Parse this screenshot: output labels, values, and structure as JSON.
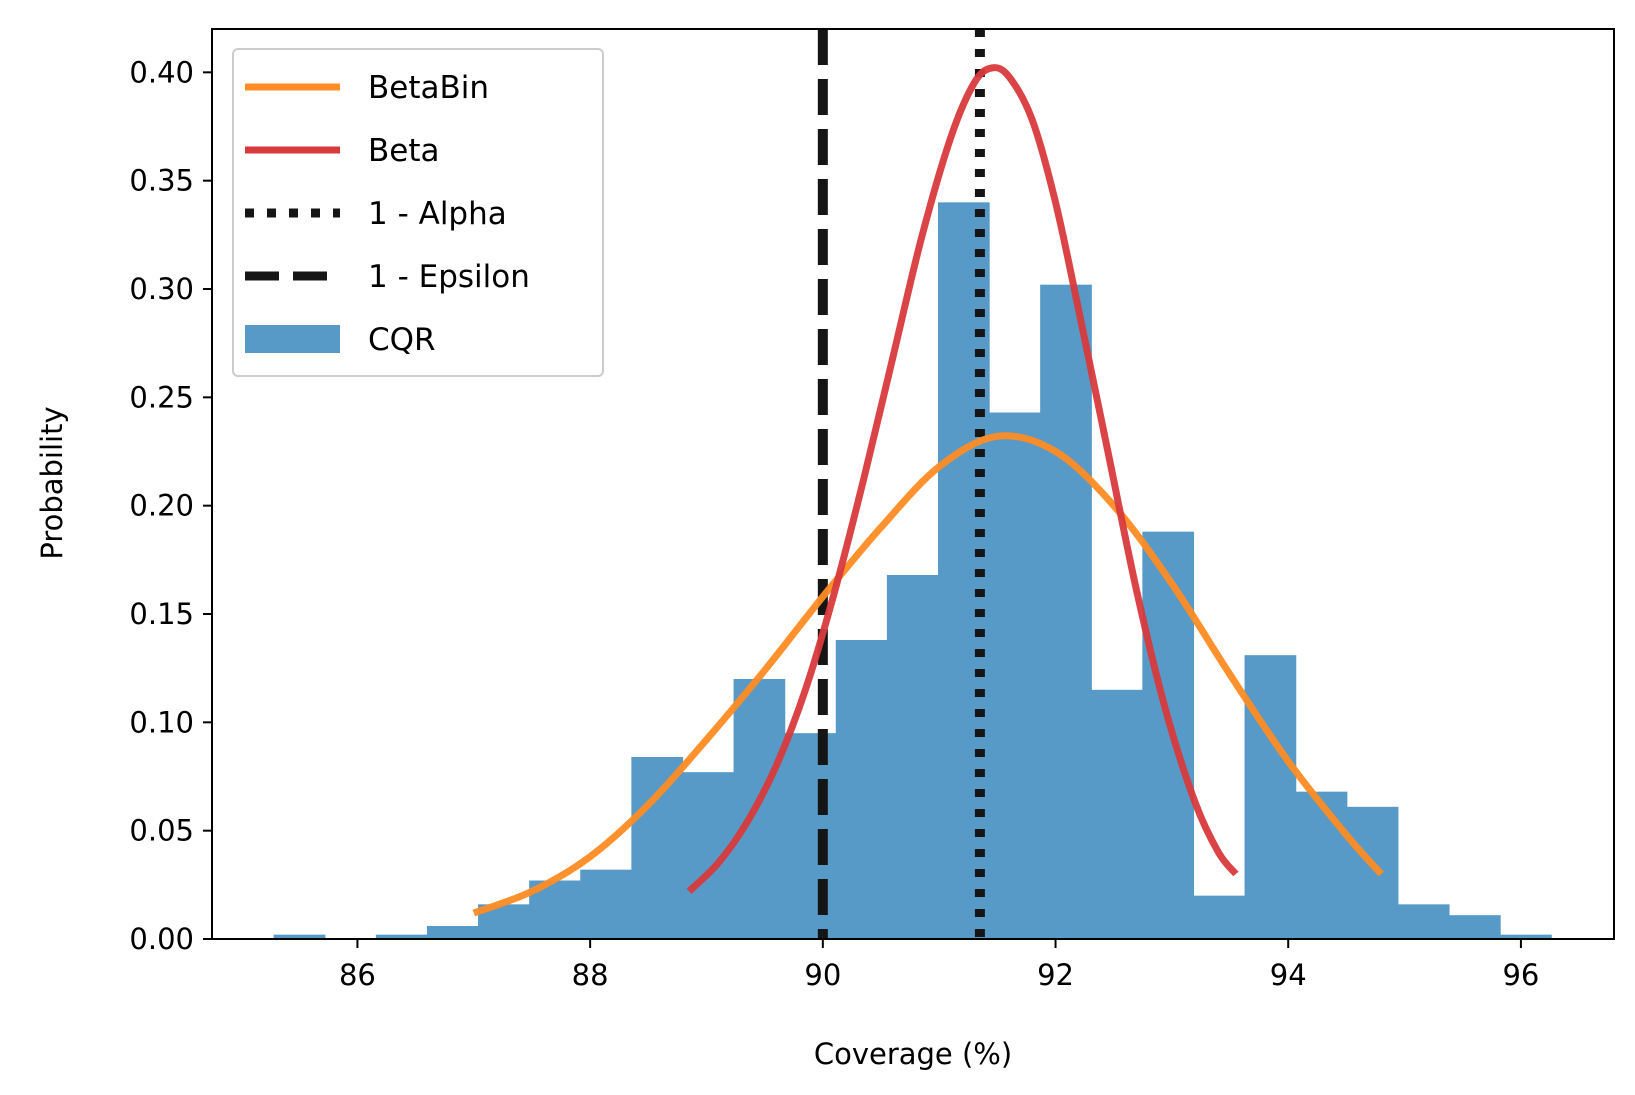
{
  "chart_data": {
    "type": "bar",
    "title": "",
    "xlabel": "Coverage (%)",
    "ylabel": "Probability",
    "xlim": [
      84.75,
      96.8
    ],
    "ylim": [
      0,
      0.42
    ],
    "grid": false,
    "legend_position": "top-left",
    "x_ticks": [
      {
        "value": 86,
        "label": "86"
      },
      {
        "value": 88,
        "label": "88"
      },
      {
        "value": 90,
        "label": "90"
      },
      {
        "value": 92,
        "label": "92"
      },
      {
        "value": 94,
        "label": "94"
      },
      {
        "value": 96,
        "label": "96"
      }
    ],
    "y_ticks": [
      {
        "value": 0.0,
        "label": "0.00"
      },
      {
        "value": 0.05,
        "label": "0.05"
      },
      {
        "value": 0.1,
        "label": "0.10"
      },
      {
        "value": 0.15,
        "label": "0.15"
      },
      {
        "value": 0.2,
        "label": "0.20"
      },
      {
        "value": 0.25,
        "label": "0.25"
      },
      {
        "value": 0.3,
        "label": "0.30"
      },
      {
        "value": 0.35,
        "label": "0.35"
      },
      {
        "value": 0.4,
        "label": "0.40"
      }
    ],
    "histogram": {
      "name": "CQR",
      "color": "#5799c7",
      "bin_start": 85.28,
      "bin_width": 0.4392,
      "values": [
        0.002,
        0.0,
        0.002,
        0.006,
        0.016,
        0.027,
        0.032,
        0.084,
        0.077,
        0.12,
        0.095,
        0.138,
        0.168,
        0.34,
        0.243,
        0.302,
        0.115,
        0.188,
        0.02,
        0.131,
        0.068,
        0.061,
        0.016,
        0.011,
        0.002
      ]
    },
    "series": [
      {
        "name": "BetaBin",
        "type": "line",
        "color": "#ff8c24",
        "x": [
          87.0,
          87.5,
          88.0,
          88.5,
          89.0,
          89.5,
          90.0,
          90.5,
          91.0,
          91.5,
          92.0,
          92.5,
          93.0,
          93.5,
          94.0,
          94.5,
          94.8
        ],
        "values": [
          0.012,
          0.022,
          0.038,
          0.062,
          0.092,
          0.124,
          0.158,
          0.19,
          0.218,
          0.232,
          0.225,
          0.2,
          0.164,
          0.122,
          0.082,
          0.048,
          0.03
        ]
      },
      {
        "name": "Beta",
        "type": "line",
        "color": "#d83a3c",
        "x": [
          88.85,
          89.1,
          89.35,
          89.6,
          89.85,
          90.1,
          90.35,
          90.6,
          90.85,
          91.1,
          91.3,
          91.45,
          91.6,
          91.8,
          92.0,
          92.2,
          92.45,
          92.7,
          92.95,
          93.2,
          93.4,
          93.55
        ],
        "values": [
          0.022,
          0.035,
          0.054,
          0.08,
          0.115,
          0.16,
          0.212,
          0.268,
          0.324,
          0.37,
          0.395,
          0.402,
          0.398,
          0.378,
          0.34,
          0.29,
          0.225,
          0.16,
          0.105,
          0.063,
          0.04,
          0.03
        ]
      }
    ],
    "reference_lines": [
      {
        "name": "1 - Alpha",
        "x": 91.35,
        "style": "dotted",
        "color": "#151515"
      },
      {
        "name": "1 - Epsilon",
        "x": 90.0,
        "style": "dashed",
        "color": "#151515"
      }
    ],
    "legend": [
      {
        "label": "BetaBin",
        "kind": "line-solid",
        "color": "#ff8c24"
      },
      {
        "label": "Beta",
        "kind": "line-solid",
        "color": "#d83a3c"
      },
      {
        "label": "1 - Alpha",
        "kind": "line-dotted",
        "color": "#151515"
      },
      {
        "label": "1 - Epsilon",
        "kind": "line-dashed",
        "color": "#151515"
      },
      {
        "label": "CQR",
        "kind": "patch",
        "color": "#5799c7"
      }
    ]
  }
}
